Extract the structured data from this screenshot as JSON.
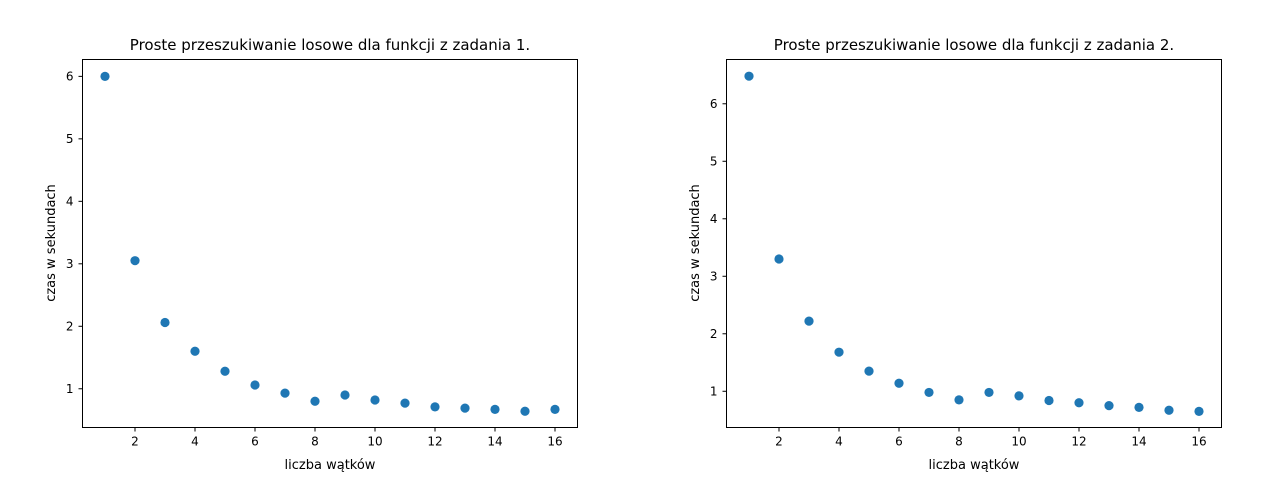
{
  "chart_data": [
    {
      "type": "scatter",
      "title": "Proste przeszukiwanie losowe dla funkcji z zadania 1.",
      "xlabel": "liczba wątków",
      "ylabel": "czas w sekundach",
      "marker_color": "#1f77b4",
      "xlim": [
        0.25,
        16.75
      ],
      "ylim": [
        0.38,
        6.27
      ],
      "xticks": [
        2,
        4,
        6,
        8,
        10,
        12,
        14,
        16
      ],
      "xtick_labels": [
        "2",
        "4",
        "6",
        "8",
        "10",
        "12",
        "14",
        "16"
      ],
      "yticks": [
        1,
        2,
        3,
        4,
        5,
        6
      ],
      "ytick_labels": [
        "1",
        "2",
        "3",
        "4",
        "5",
        "6"
      ],
      "x": [
        1,
        2,
        3,
        4,
        5,
        6,
        7,
        8,
        9,
        10,
        11,
        12,
        13,
        14,
        15,
        16
      ],
      "y": [
        6.0,
        3.05,
        2.06,
        1.6,
        1.28,
        1.06,
        0.93,
        0.8,
        0.9,
        0.82,
        0.77,
        0.71,
        0.69,
        0.67,
        0.64,
        0.67
      ],
      "grid": false
    },
    {
      "type": "scatter",
      "title": "Proste przeszukiwanie losowe dla funkcji z zadania 2.",
      "xlabel": "liczba wątków",
      "ylabel": "czas w sekundach",
      "marker_color": "#1f77b4",
      "xlim": [
        0.25,
        16.75
      ],
      "ylim": [
        0.37,
        6.77
      ],
      "xticks": [
        2,
        4,
        6,
        8,
        10,
        12,
        14,
        16
      ],
      "xtick_labels": [
        "2",
        "4",
        "6",
        "8",
        "10",
        "12",
        "14",
        "16"
      ],
      "yticks": [
        1,
        2,
        3,
        4,
        5,
        6
      ],
      "ytick_labels": [
        "1",
        "2",
        "3",
        "4",
        "5",
        "6"
      ],
      "x": [
        1,
        2,
        3,
        4,
        5,
        6,
        7,
        8,
        9,
        10,
        11,
        12,
        13,
        14,
        15,
        16
      ],
      "y": [
        6.48,
        3.3,
        2.22,
        1.68,
        1.35,
        1.14,
        0.98,
        0.85,
        0.98,
        0.92,
        0.84,
        0.8,
        0.75,
        0.72,
        0.67,
        0.65
      ],
      "grid": false
    }
  ]
}
